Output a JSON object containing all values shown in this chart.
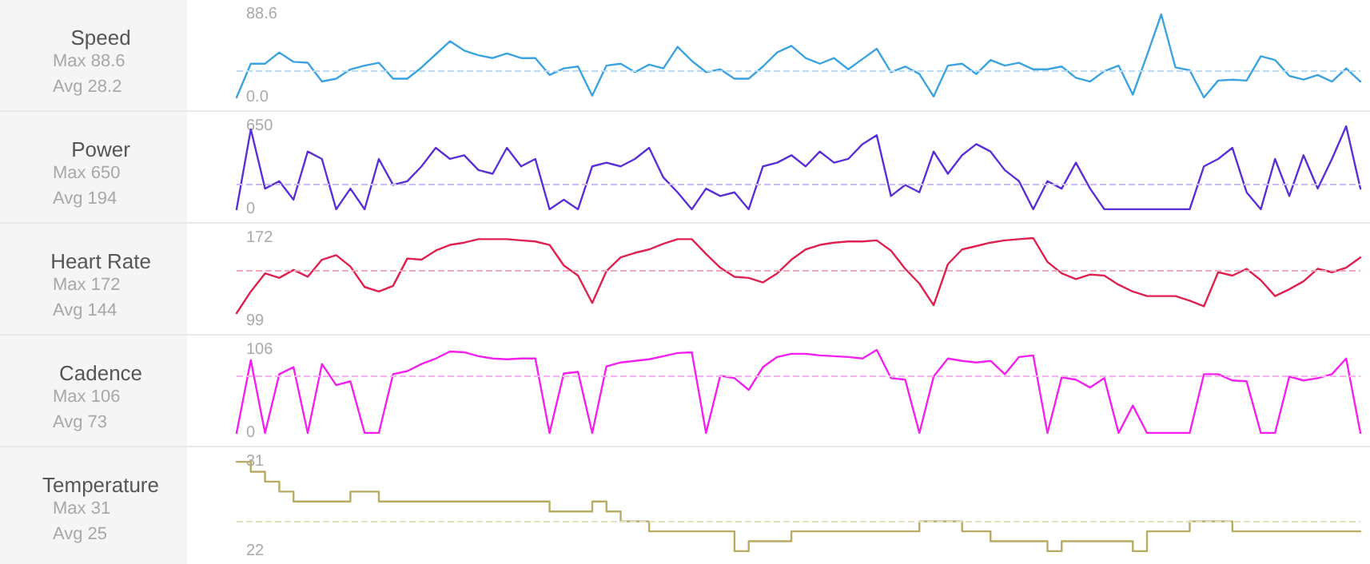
{
  "chart_data": [
    {
      "type": "line",
      "title": "Speed",
      "annotations": [
        "Max 88.6",
        "Avg 28.2"
      ],
      "categories": [
        null,
        null,
        null,
        null,
        null,
        null,
        null,
        null,
        null,
        null,
        null,
        null,
        null,
        null,
        null,
        null,
        null,
        null,
        null,
        null,
        null,
        null,
        null,
        null,
        null,
        null,
        null,
        null,
        null,
        null,
        null,
        null,
        null,
        null,
        null,
        null,
        null,
        null,
        null,
        null,
        null,
        null,
        null,
        null,
        null,
        null,
        null,
        null,
        null,
        null,
        null,
        null,
        null,
        null,
        null,
        null,
        null,
        null,
        null,
        null,
        null,
        null,
        null,
        null,
        null,
        null,
        null,
        null,
        null,
        null,
        null,
        null,
        null,
        null,
        null,
        null,
        null,
        null,
        null,
        null
      ],
      "ylim": [
        0,
        88.6
      ],
      "yticks": [
        {
          "value": 0,
          "label": "0.0"
        },
        88.6
      ],
      "tick_labels": "y",
      "ref_lines": [
        {
          "axis": "y",
          "value": 28.2,
          "color": "#b9dcf2",
          "line_style": "dashed"
        }
      ],
      "series": [
        {
          "color": "#3ba3e0",
          "values": [
            0,
            36,
            36,
            48,
            38,
            37,
            17,
            20,
            30,
            34,
            37,
            20,
            20,
            32,
            46,
            60,
            50,
            45,
            42,
            47,
            42,
            42,
            24,
            31,
            33,
            2,
            34,
            36,
            27,
            35,
            31,
            54,
            39,
            27,
            30,
            20,
            20,
            33,
            48,
            55,
            42,
            36,
            42,
            30,
            41,
            52,
            27,
            33,
            25,
            1,
            34,
            36,
            25,
            40,
            34,
            37,
            30,
            30,
            33,
            21,
            17,
            28,
            34,
            3,
            45,
            88.6,
            32,
            29,
            0,
            18,
            19,
            18,
            44,
            40,
            23,
            19,
            24,
            17,
            31,
            17
          ]
        }
      ]
    },
    {
      "type": "line",
      "title": "Power",
      "annotations": [
        "Max 650",
        "Avg 194"
      ],
      "categories": [
        null,
        null,
        null,
        null,
        null,
        null,
        null,
        null,
        null,
        null,
        null,
        null,
        null,
        null,
        null,
        null,
        null,
        null,
        null,
        null,
        null,
        null,
        null,
        null,
        null,
        null,
        null,
        null,
        null,
        null,
        null,
        null,
        null,
        null,
        null,
        null,
        null,
        null,
        null,
        null,
        null,
        null,
        null,
        null,
        null,
        null,
        null,
        null,
        null,
        null,
        null,
        null,
        null,
        null,
        null,
        null,
        null,
        null,
        null,
        null,
        null,
        null,
        null,
        null,
        null,
        null,
        null,
        null,
        null,
        null,
        null,
        null,
        null,
        null,
        null,
        null,
        null,
        null,
        null,
        null
      ],
      "ylim": [
        0,
        650
      ],
      "yticks": [
        0,
        650
      ],
      "tick_labels": "y",
      "ref_lines": [
        {
          "axis": "y",
          "value": 194,
          "color": "#cbbdf2",
          "line_style": "dashed"
        }
      ],
      "series": [
        {
          "color": "#5b2fd6",
          "values": [
            0,
            626,
            162,
            220,
            75,
            452,
            394,
            0,
            162,
            0,
            394,
            191,
            220,
            336,
            481,
            394,
            423,
            307,
            278,
            481,
            336,
            394,
            0,
            75,
            0,
            336,
            365,
            336,
            394,
            481,
            249,
            133,
            0,
            162,
            104,
            133,
            0,
            336,
            365,
            423,
            336,
            452,
            365,
            394,
            510,
            580,
            104,
            191,
            133,
            452,
            278,
            423,
            510,
            452,
            307,
            220,
            0,
            220,
            162,
            365,
            162,
            0,
            0,
            0,
            0,
            0,
            0,
            0,
            336,
            394,
            481,
            133,
            0,
            394,
            104,
            423,
            162,
            394,
            650,
            162
          ]
        }
      ]
    },
    {
      "type": "line",
      "title": "Heart Rate",
      "annotations": [
        "Max 172",
        "Avg 144"
      ],
      "categories": [
        null,
        null,
        null,
        null,
        null,
        null,
        null,
        null,
        null,
        null,
        null,
        null,
        null,
        null,
        null,
        null,
        null,
        null,
        null,
        null,
        null,
        null,
        null,
        null,
        null,
        null,
        null,
        null,
        null,
        null,
        null,
        null,
        null,
        null,
        null,
        null,
        null,
        null,
        null,
        null,
        null,
        null,
        null,
        null,
        null,
        null,
        null,
        null,
        null,
        null,
        null,
        null,
        null,
        null,
        null,
        null,
        null,
        null,
        null,
        null,
        null,
        null,
        null,
        null,
        null,
        null,
        null,
        null,
        null,
        null,
        null,
        null,
        null,
        null,
        null,
        null,
        null,
        null,
        null,
        null
      ],
      "ylim": [
        99,
        172
      ],
      "yticks": [
        99,
        172
      ],
      "tick_labels": "y",
      "ref_lines": [
        {
          "axis": "y",
          "value": 144,
          "color": "#f2a8bb",
          "line_style": "dashed"
        }
      ],
      "series": [
        {
          "color": "#e0204f",
          "values": [
            106,
            125,
            141,
            137,
            144,
            138,
            153,
            157,
            147,
            129,
            125,
            130,
            154,
            153,
            161,
            166,
            168,
            171,
            171,
            171,
            170,
            169,
            166,
            148,
            139,
            115,
            143,
            155,
            159,
            162,
            167,
            171,
            171,
            158,
            146,
            138,
            137,
            133,
            141,
            153,
            162,
            166,
            168,
            169,
            169,
            170,
            161,
            145,
            132,
            113,
            149,
            162,
            165,
            168,
            170,
            171,
            172,
            151,
            141,
            136,
            140,
            139,
            131,
            125,
            121,
            121,
            121,
            117,
            112,
            142,
            139,
            145,
            135,
            121,
            127,
            134,
            145,
            142,
            146,
            155
          ]
        }
      ]
    },
    {
      "type": "line",
      "title": "Cadence",
      "annotations": [
        "Max 106",
        "Avg 73"
      ],
      "categories": [
        null,
        null,
        null,
        null,
        null,
        null,
        null,
        null,
        null,
        null,
        null,
        null,
        null,
        null,
        null,
        null,
        null,
        null,
        null,
        null,
        null,
        null,
        null,
        null,
        null,
        null,
        null,
        null,
        null,
        null,
        null,
        null,
        null,
        null,
        null,
        null,
        null,
        null,
        null,
        null,
        null,
        null,
        null,
        null,
        null,
        null,
        null,
        null,
        null,
        null,
        null,
        null,
        null,
        null,
        null,
        null,
        null,
        null,
        null,
        null,
        null,
        null,
        null,
        null,
        null,
        null,
        null,
        null,
        null,
        null,
        null,
        null,
        null,
        null,
        null,
        null,
        null,
        null,
        null,
        null
      ],
      "ylim": [
        0,
        106
      ],
      "yticks": [
        0,
        106
      ],
      "tick_labels": "y",
      "ref_lines": [
        {
          "axis": "y",
          "value": 73,
          "color": "#f7b0f2",
          "line_style": "dashed"
        }
      ],
      "series": [
        {
          "color": "#f51ff0",
          "values": [
            0,
            93,
            0,
            75,
            84,
            0,
            88,
            61,
            66,
            0,
            0,
            75,
            79,
            88,
            95,
            104,
            103,
            98,
            95,
            94,
            95,
            95,
            0,
            76,
            78,
            0,
            85,
            90,
            92,
            94,
            98,
            102,
            103,
            0,
            73,
            70,
            55,
            84,
            97,
            101,
            101,
            99,
            98,
            97,
            95,
            106,
            70,
            68,
            0,
            72,
            95,
            92,
            90,
            92,
            75,
            97,
            99,
            0,
            71,
            68,
            58,
            70,
            0,
            35,
            0,
            0,
            0,
            0,
            75,
            75,
            67,
            66,
            0,
            0,
            72,
            67,
            70,
            75,
            95,
            0
          ]
        }
      ]
    },
    {
      "type": "step",
      "title": "Temperature",
      "annotations": [
        "Max 31",
        "Avg 25"
      ],
      "categories": [
        null,
        null,
        null,
        null,
        null,
        null,
        null,
        null,
        null,
        null,
        null,
        null,
        null,
        null,
        null,
        null,
        null,
        null,
        null,
        null,
        null,
        null,
        null,
        null,
        null,
        null,
        null,
        null,
        null,
        null,
        null,
        null,
        null,
        null,
        null,
        null,
        null,
        null,
        null,
        null,
        null,
        null,
        null,
        null,
        null,
        null,
        null,
        null,
        null,
        null,
        null,
        null,
        null,
        null,
        null,
        null,
        null,
        null,
        null,
        null,
        null,
        null,
        null,
        null,
        null,
        null,
        null,
        null,
        null,
        null,
        null,
        null,
        null,
        null,
        null,
        null,
        null,
        null,
        null,
        null
      ],
      "ylim": [
        22,
        31
      ],
      "yticks": [
        22,
        31
      ],
      "tick_labels": "y",
      "ref_lines": [
        {
          "axis": "y",
          "value": 25,
          "color": "#e6e0c2",
          "line_style": "dashed"
        }
      ],
      "series": [
        {
          "color": "#b8ab62",
          "values": [
            31,
            30,
            29,
            28,
            27,
            27,
            27,
            27,
            28,
            28,
            27,
            27,
            27,
            27,
            27,
            27,
            27,
            27,
            27,
            27,
            27,
            27,
            26,
            26,
            26,
            27,
            26,
            25,
            25,
            24,
            24,
            24,
            24,
            24,
            24,
            22,
            23,
            23,
            23,
            24,
            24,
            24,
            24,
            24,
            24,
            24,
            24,
            24,
            25,
            25,
            25,
            24,
            24,
            23,
            23,
            23,
            23,
            22,
            23,
            23,
            23,
            23,
            23,
            22,
            24,
            24,
            24,
            25,
            25,
            25,
            24,
            24,
            24,
            24,
            24,
            24,
            24,
            24,
            24,
            24
          ]
        }
      ]
    }
  ]
}
